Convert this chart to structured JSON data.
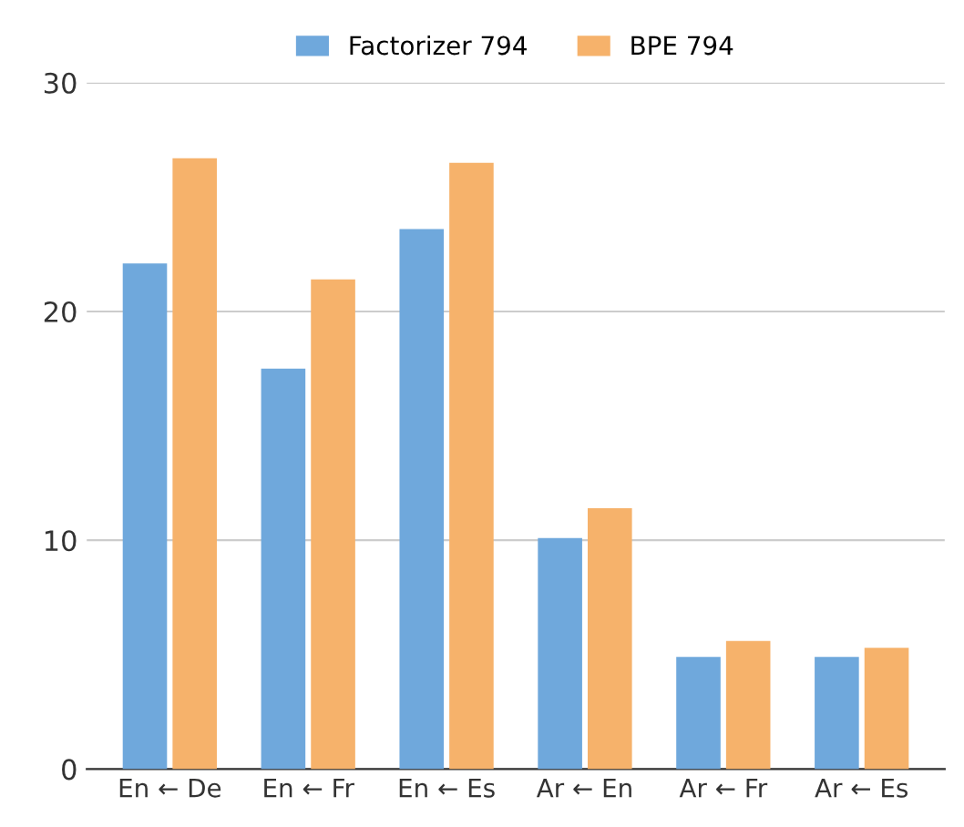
{
  "chart_data": {
    "type": "bar",
    "categories": [
      "En ← De",
      "En ← Fr",
      "En ← Es",
      "Ar ← En",
      "Ar ← Fr",
      "Ar ← Es"
    ],
    "series": [
      {
        "name": "Factorizer 794",
        "color": "#6fa8dc",
        "values": [
          22.1,
          17.5,
          23.6,
          10.1,
          4.9,
          4.9
        ]
      },
      {
        "name": "BPE 794",
        "color": "#f6b26b",
        "values": [
          26.7,
          21.4,
          26.5,
          11.4,
          5.6,
          5.3
        ]
      }
    ],
    "ylim": [
      0,
      30
    ],
    "yticks": [
      0,
      10,
      20,
      30
    ],
    "grid": "y",
    "legend": "top"
  }
}
